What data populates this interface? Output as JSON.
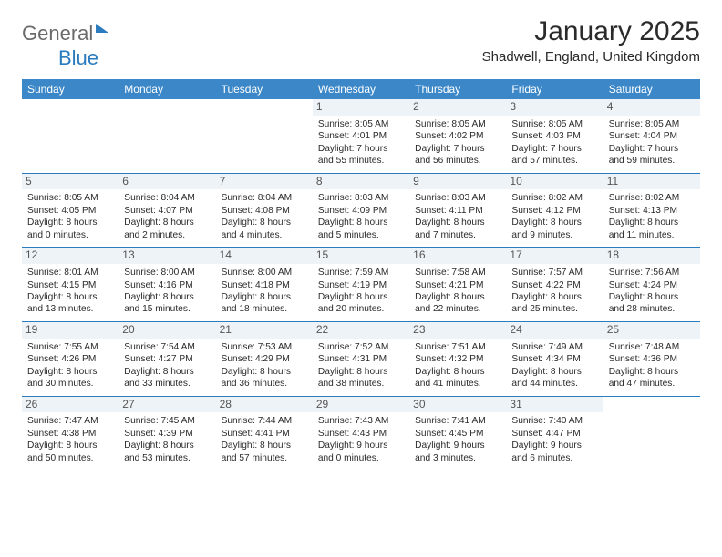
{
  "brand": {
    "general": "General",
    "blue": "Blue"
  },
  "title": "January 2025",
  "location": "Shadwell, England, United Kingdom",
  "colors": {
    "header_bg": "#3b87c8",
    "divider": "#2b7bbf",
    "daynum_bg": "#eef3f7",
    "text": "#2a2a2a",
    "logo_gray": "#6a6a6a",
    "logo_blue": "#2b7bbf"
  },
  "weekdays": [
    "Sunday",
    "Monday",
    "Tuesday",
    "Wednesday",
    "Thursday",
    "Friday",
    "Saturday"
  ],
  "weeks": [
    [
      null,
      null,
      null,
      {
        "n": "1",
        "sr": "8:05 AM",
        "ss": "4:01 PM",
        "dl": "7 hours and 55 minutes."
      },
      {
        "n": "2",
        "sr": "8:05 AM",
        "ss": "4:02 PM",
        "dl": "7 hours and 56 minutes."
      },
      {
        "n": "3",
        "sr": "8:05 AM",
        "ss": "4:03 PM",
        "dl": "7 hours and 57 minutes."
      },
      {
        "n": "4",
        "sr": "8:05 AM",
        "ss": "4:04 PM",
        "dl": "7 hours and 59 minutes."
      }
    ],
    [
      {
        "n": "5",
        "sr": "8:05 AM",
        "ss": "4:05 PM",
        "dl": "8 hours and 0 minutes."
      },
      {
        "n": "6",
        "sr": "8:04 AM",
        "ss": "4:07 PM",
        "dl": "8 hours and 2 minutes."
      },
      {
        "n": "7",
        "sr": "8:04 AM",
        "ss": "4:08 PM",
        "dl": "8 hours and 4 minutes."
      },
      {
        "n": "8",
        "sr": "8:03 AM",
        "ss": "4:09 PM",
        "dl": "8 hours and 5 minutes."
      },
      {
        "n": "9",
        "sr": "8:03 AM",
        "ss": "4:11 PM",
        "dl": "8 hours and 7 minutes."
      },
      {
        "n": "10",
        "sr": "8:02 AM",
        "ss": "4:12 PM",
        "dl": "8 hours and 9 minutes."
      },
      {
        "n": "11",
        "sr": "8:02 AM",
        "ss": "4:13 PM",
        "dl": "8 hours and 11 minutes."
      }
    ],
    [
      {
        "n": "12",
        "sr": "8:01 AM",
        "ss": "4:15 PM",
        "dl": "8 hours and 13 minutes."
      },
      {
        "n": "13",
        "sr": "8:00 AM",
        "ss": "4:16 PM",
        "dl": "8 hours and 15 minutes."
      },
      {
        "n": "14",
        "sr": "8:00 AM",
        "ss": "4:18 PM",
        "dl": "8 hours and 18 minutes."
      },
      {
        "n": "15",
        "sr": "7:59 AM",
        "ss": "4:19 PM",
        "dl": "8 hours and 20 minutes."
      },
      {
        "n": "16",
        "sr": "7:58 AM",
        "ss": "4:21 PM",
        "dl": "8 hours and 22 minutes."
      },
      {
        "n": "17",
        "sr": "7:57 AM",
        "ss": "4:22 PM",
        "dl": "8 hours and 25 minutes."
      },
      {
        "n": "18",
        "sr": "7:56 AM",
        "ss": "4:24 PM",
        "dl": "8 hours and 28 minutes."
      }
    ],
    [
      {
        "n": "19",
        "sr": "7:55 AM",
        "ss": "4:26 PM",
        "dl": "8 hours and 30 minutes."
      },
      {
        "n": "20",
        "sr": "7:54 AM",
        "ss": "4:27 PM",
        "dl": "8 hours and 33 minutes."
      },
      {
        "n": "21",
        "sr": "7:53 AM",
        "ss": "4:29 PM",
        "dl": "8 hours and 36 minutes."
      },
      {
        "n": "22",
        "sr": "7:52 AM",
        "ss": "4:31 PM",
        "dl": "8 hours and 38 minutes."
      },
      {
        "n": "23",
        "sr": "7:51 AM",
        "ss": "4:32 PM",
        "dl": "8 hours and 41 minutes."
      },
      {
        "n": "24",
        "sr": "7:49 AM",
        "ss": "4:34 PM",
        "dl": "8 hours and 44 minutes."
      },
      {
        "n": "25",
        "sr": "7:48 AM",
        "ss": "4:36 PM",
        "dl": "8 hours and 47 minutes."
      }
    ],
    [
      {
        "n": "26",
        "sr": "7:47 AM",
        "ss": "4:38 PM",
        "dl": "8 hours and 50 minutes."
      },
      {
        "n": "27",
        "sr": "7:45 AM",
        "ss": "4:39 PM",
        "dl": "8 hours and 53 minutes."
      },
      {
        "n": "28",
        "sr": "7:44 AM",
        "ss": "4:41 PM",
        "dl": "8 hours and 57 minutes."
      },
      {
        "n": "29",
        "sr": "7:43 AM",
        "ss": "4:43 PM",
        "dl": "9 hours and 0 minutes."
      },
      {
        "n": "30",
        "sr": "7:41 AM",
        "ss": "4:45 PM",
        "dl": "9 hours and 3 minutes."
      },
      {
        "n": "31",
        "sr": "7:40 AM",
        "ss": "4:47 PM",
        "dl": "9 hours and 6 minutes."
      },
      null
    ]
  ],
  "labels": {
    "sunrise": "Sunrise: ",
    "sunset": "Sunset: ",
    "daylight": "Daylight: "
  }
}
